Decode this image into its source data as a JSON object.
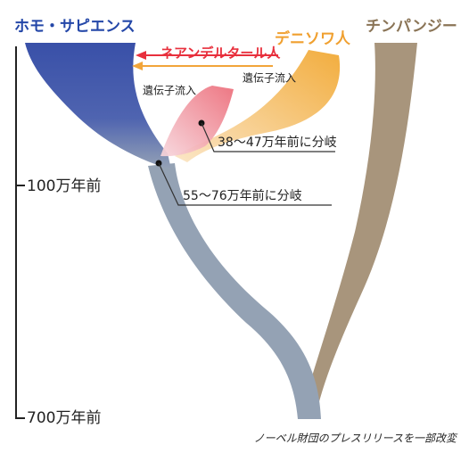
{
  "species": {
    "homo_sapiens": "ホモ・サピエンス",
    "denisovan": "デニソワ人",
    "chimpanzee": "チンパンジー",
    "neanderthal": "ネアンデルタール人"
  },
  "gene_flow": [
    "遺伝子流入",
    "遺伝子流入"
  ],
  "annotations": [
    "38〜47万年前に分岐",
    "55〜76万年前に分岐"
  ],
  "axis": {
    "ticks": [
      "100万年前",
      "700万年前"
    ]
  },
  "credit": "ノーベル財団のプレスリリースを一部改変"
}
